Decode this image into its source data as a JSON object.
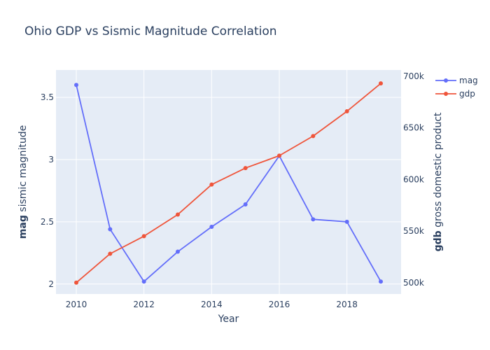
{
  "chart_data": {
    "type": "line",
    "title": "Ohio GDP vs Sismic Magnitude Correlation",
    "xlabel": "Year",
    "ylabel_bold": "mag",
    "ylabel_rest": "sismic magnitude",
    "y2label_bold": "gdb",
    "y2label_rest": "gross domestic product",
    "x": [
      2010,
      2011,
      2012,
      2013,
      2014,
      2015,
      2016,
      2017,
      2018,
      2019
    ],
    "xlim": [
      2009.4,
      2019.6
    ],
    "x_ticks": [
      "2010",
      "2012",
      "2014",
      "2016",
      "2018"
    ],
    "ylim": [
      1.92,
      3.72
    ],
    "y_ticks": [
      "2",
      "2.5",
      "3",
      "3.5"
    ],
    "y2lim": [
      489000,
      706000
    ],
    "y2_ticks": [
      "500k",
      "550k",
      "600k",
      "650k",
      "700k"
    ],
    "legend_position": "top-right",
    "grid": true,
    "series": [
      {
        "name": "mag",
        "axis": "y",
        "color": "#636efa",
        "values": [
          3.6,
          2.44,
          2.02,
          2.26,
          2.46,
          2.64,
          3.03,
          2.52,
          2.5,
          2.02
        ]
      },
      {
        "name": "gdp",
        "axis": "y2",
        "color": "#ef553b",
        "values": [
          500000,
          528000,
          545000,
          566000,
          595000,
          611000,
          623000,
          642000,
          666000,
          693000
        ]
      }
    ],
    "colors": {
      "plot_bg": "#e5ecf6",
      "grid": "#ffffff",
      "text": "#2a3f5f"
    }
  }
}
